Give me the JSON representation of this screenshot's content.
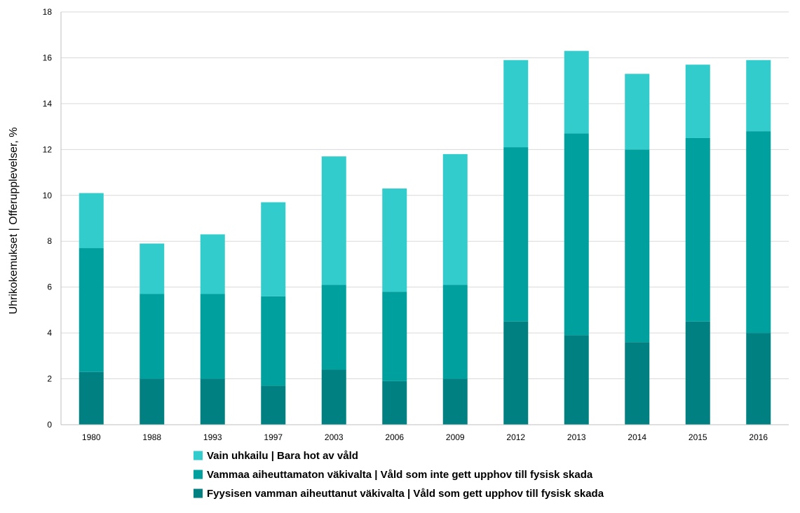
{
  "chart_data": {
    "type": "bar",
    "stacked": true,
    "title": "",
    "xlabel": "",
    "ylabel": "Uhrikokemukset | Offerupplevelser, %",
    "ylim": [
      0,
      18
    ],
    "yticks": [
      "0",
      "2",
      "4",
      "6",
      "8",
      "10",
      "12",
      "14",
      "16",
      "18"
    ],
    "grid": true,
    "legend_position": "bottom",
    "categories": [
      "1980",
      "1988",
      "1993",
      "1997",
      "2003",
      "2006",
      "2009",
      "2012",
      "2013",
      "2014",
      "2015",
      "2016"
    ],
    "series": [
      {
        "name": "Fyysisen vamman aiheuttanut väkivalta | Våld som gett upphov till fysisk skada",
        "color": "#008080",
        "values": [
          2.3,
          2.0,
          2.0,
          1.7,
          2.4,
          1.9,
          2.0,
          4.5,
          3.9,
          3.6,
          4.5,
          4.0
        ]
      },
      {
        "name": "Vammaa aiheuttamaton väkivalta | Våld som inte gett upphov till fysisk skada",
        "color": "#00A09E",
        "values": [
          5.4,
          3.7,
          3.7,
          3.9,
          3.7,
          3.9,
          4.1,
          7.6,
          8.8,
          8.4,
          8.0,
          8.8
        ]
      },
      {
        "name": "Vain uhkailu | Bara hot av våld",
        "color": "#33CCCC",
        "values": [
          2.4,
          2.2,
          2.6,
          4.1,
          5.6,
          4.5,
          5.7,
          3.8,
          3.6,
          3.3,
          3.2,
          3.1
        ]
      }
    ],
    "legend_order": [
      2,
      1,
      0
    ]
  }
}
